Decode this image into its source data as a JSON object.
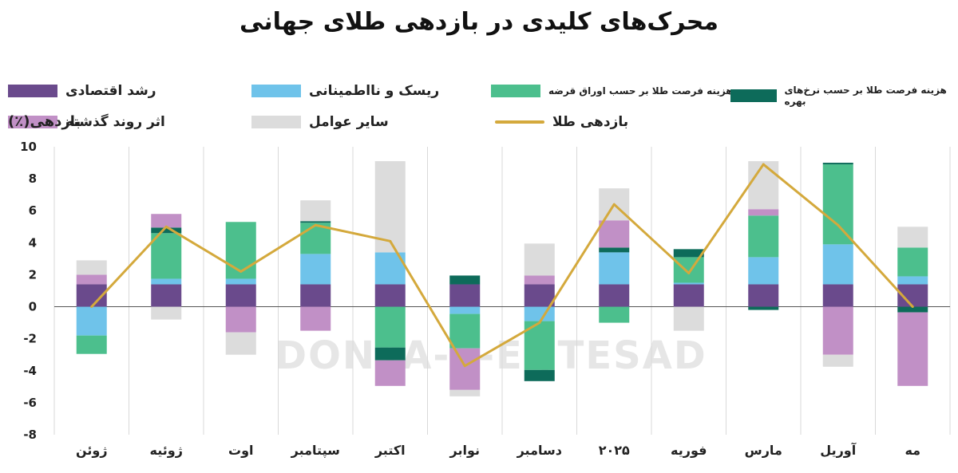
{
  "title": "محرک‌های کلیدی در بازدهی طلای جهانی",
  "watermark": "DONYA-E-EQTESAD",
  "chart_data": {
    "type": "bar",
    "stacked": true,
    "ylabel": "بازدهی(٪)",
    "ylim": [
      -8,
      10
    ],
    "yticks": [
      -8,
      -6,
      -4,
      -2,
      0,
      2,
      4,
      6,
      8,
      10
    ],
    "grid": "vertical separators",
    "legend_position": "top",
    "categories": [
      "ژوئن",
      "ژوئیه",
      "اوت",
      "سپتامبر",
      "اکتبر",
      "نوابر",
      "دسامبر",
      "۲۰۲۵",
      "فوریه",
      "مارس",
      "آوریل",
      "مه"
    ],
    "series": [
      {
        "name": "رشد اقتصادی",
        "color": "#6a4a8c",
        "values": [
          1.4,
          1.4,
          1.4,
          1.4,
          1.4,
          1.4,
          1.4,
          1.4,
          1.4,
          1.4,
          1.4,
          1.4
        ]
      },
      {
        "name": "ریسک و نااطمینانی",
        "color": "#6fc3ea",
        "values": [
          -1.8,
          0.35,
          0.35,
          1.9,
          2.0,
          -0.45,
          -0.9,
          2.0,
          0.1,
          1.7,
          2.5,
          0.5
        ]
      },
      {
        "name": "هزینه فرصت طلا بر حسب اوراق قرضه",
        "color": "#4cbf8d",
        "values": [
          -1.15,
          2.85,
          3.55,
          1.95,
          -2.55,
          -2.15,
          -3.05,
          -1.0,
          1.6,
          2.6,
          5.0,
          1.8
        ]
      },
      {
        "name": "هزینه فرصت طلا بر حسب نرخ‌های بهره",
        "color": "#0d6b5a",
        "values": [
          0,
          0.35,
          0,
          0.1,
          -0.8,
          0.55,
          -0.7,
          0.3,
          0.5,
          -0.2,
          0.1,
          -0.35
        ]
      },
      {
        "name": "اثر روند گذشته",
        "color": "#c190c6",
        "values": [
          0.6,
          0.85,
          -1.6,
          -1.5,
          -1.6,
          -2.6,
          0.55,
          1.7,
          0,
          0.4,
          -3.0,
          -4.6
        ]
      },
      {
        "name": "سایر عوامل",
        "color": "#dcdcdc",
        "values": [
          0.9,
          -0.8,
          -1.4,
          1.3,
          5.7,
          -0.4,
          2.0,
          2.0,
          -1.5,
          3.0,
          -0.75,
          1.3
        ]
      }
    ],
    "line": {
      "name": "بازدهی طلا",
      "color": "#d4a93c",
      "values": [
        0.0,
        5.0,
        2.2,
        5.1,
        4.1,
        -3.7,
        -1.0,
        6.4,
        2.1,
        8.9,
        5.1,
        0.0
      ]
    }
  }
}
